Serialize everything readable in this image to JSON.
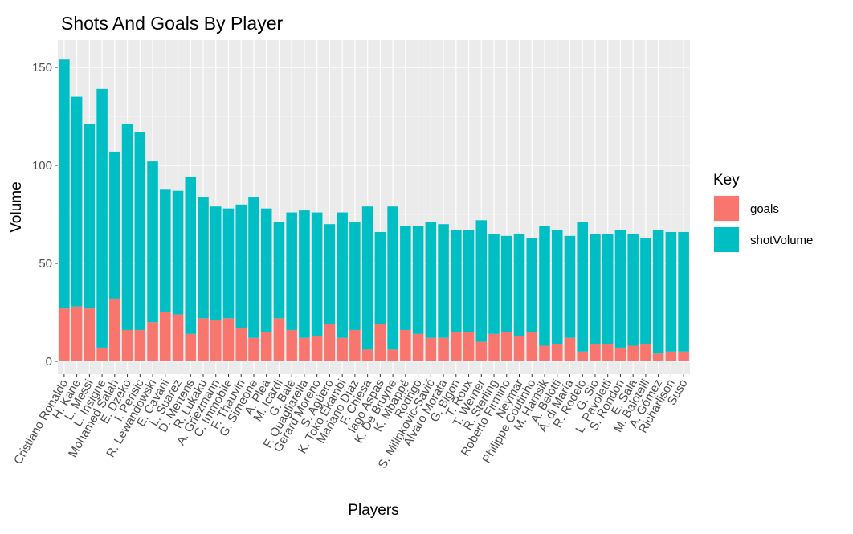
{
  "chart_data": {
    "type": "bar",
    "stacked": true,
    "title": "Shots And Goals By Player",
    "xlabel": "Players",
    "ylabel": "Volume",
    "ylim": [
      0,
      160
    ],
    "yticks": [
      0,
      50,
      100,
      150
    ],
    "grid": true,
    "legend": {
      "title": "Key",
      "position": "right"
    },
    "categories": [
      "Cristiano Ronaldo",
      "H. Kane",
      "L. Messi",
      "L. Insigne",
      "Mohamed Salah",
      "E. Dzeko",
      "I. Perisic",
      "R. Lewandowski",
      "E. Cavani",
      "L. Suárez",
      "D. Mertens",
      "R. Lukaku",
      "A. Griezmann",
      "C. Immobile",
      "F. Thauvin",
      "G. Simeone",
      "A. Plea",
      "M. Icardi",
      "G. Bale",
      "F. Quagliarella",
      "Gerard Moreno",
      "S. Agüero",
      "K. Toko Ekambi",
      "Mariano Díaz",
      "F. Chiesa",
      "Iago Aspas",
      "K. De Bruyne",
      "K. Mbappé",
      "Rodrigo",
      "S. Milinković-Savić",
      "Álvaro Morata",
      "G. Bigon",
      "T. Roux",
      "T. Werner",
      "R. Sterling",
      "Roberto Firmino",
      "Neymar",
      "Philippe Coutinho",
      "M. Hamsik",
      "A. Belotti",
      "Á. di María",
      "R. Rodelo",
      "G. Sio",
      "L. Pavoletti",
      "S. Rondon",
      "E. Sala",
      "M. Balotelli",
      "A. Gómez",
      "Richarlison",
      "Suso"
    ],
    "series": [
      {
        "name": "goals",
        "color": "#F8766D",
        "values": [
          27,
          28,
          27,
          7,
          32,
          16,
          16,
          20,
          25,
          24,
          14,
          22,
          21,
          22,
          17,
          12,
          15,
          22,
          16,
          12,
          13,
          19,
          12,
          16,
          6,
          19,
          6,
          16,
          14,
          12,
          12,
          15,
          15,
          10,
          14,
          15,
          13,
          15,
          8,
          9,
          12,
          5,
          9,
          9,
          7,
          8,
          9,
          4,
          5,
          5
        ]
      },
      {
        "name": "shotVolume",
        "color": "#00BFC4",
        "values": [
          127,
          107,
          94,
          132,
          75,
          105,
          101,
          82,
          63,
          63,
          80,
          62,
          58,
          56,
          63,
          72,
          63,
          49,
          60,
          65,
          63,
          51,
          64,
          55,
          73,
          47,
          73,
          53,
          55,
          59,
          58,
          52,
          52,
          62,
          51,
          49,
          52,
          48,
          61,
          58,
          52,
          66,
          56,
          56,
          60,
          57,
          54,
          63,
          61,
          61
        ]
      }
    ]
  }
}
